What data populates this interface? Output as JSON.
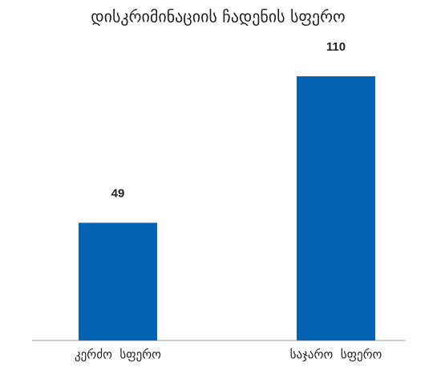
{
  "chart_data": {
    "type": "bar",
    "title": "დისკრიმინაციის ჩადენის სფერო",
    "categories": [
      "კერძო  სფერო",
      "საჯარო  სფერო"
    ],
    "values": [
      49,
      110
    ],
    "color": "#0563b4",
    "ylim": [
      0,
      110
    ],
    "grid": false
  }
}
